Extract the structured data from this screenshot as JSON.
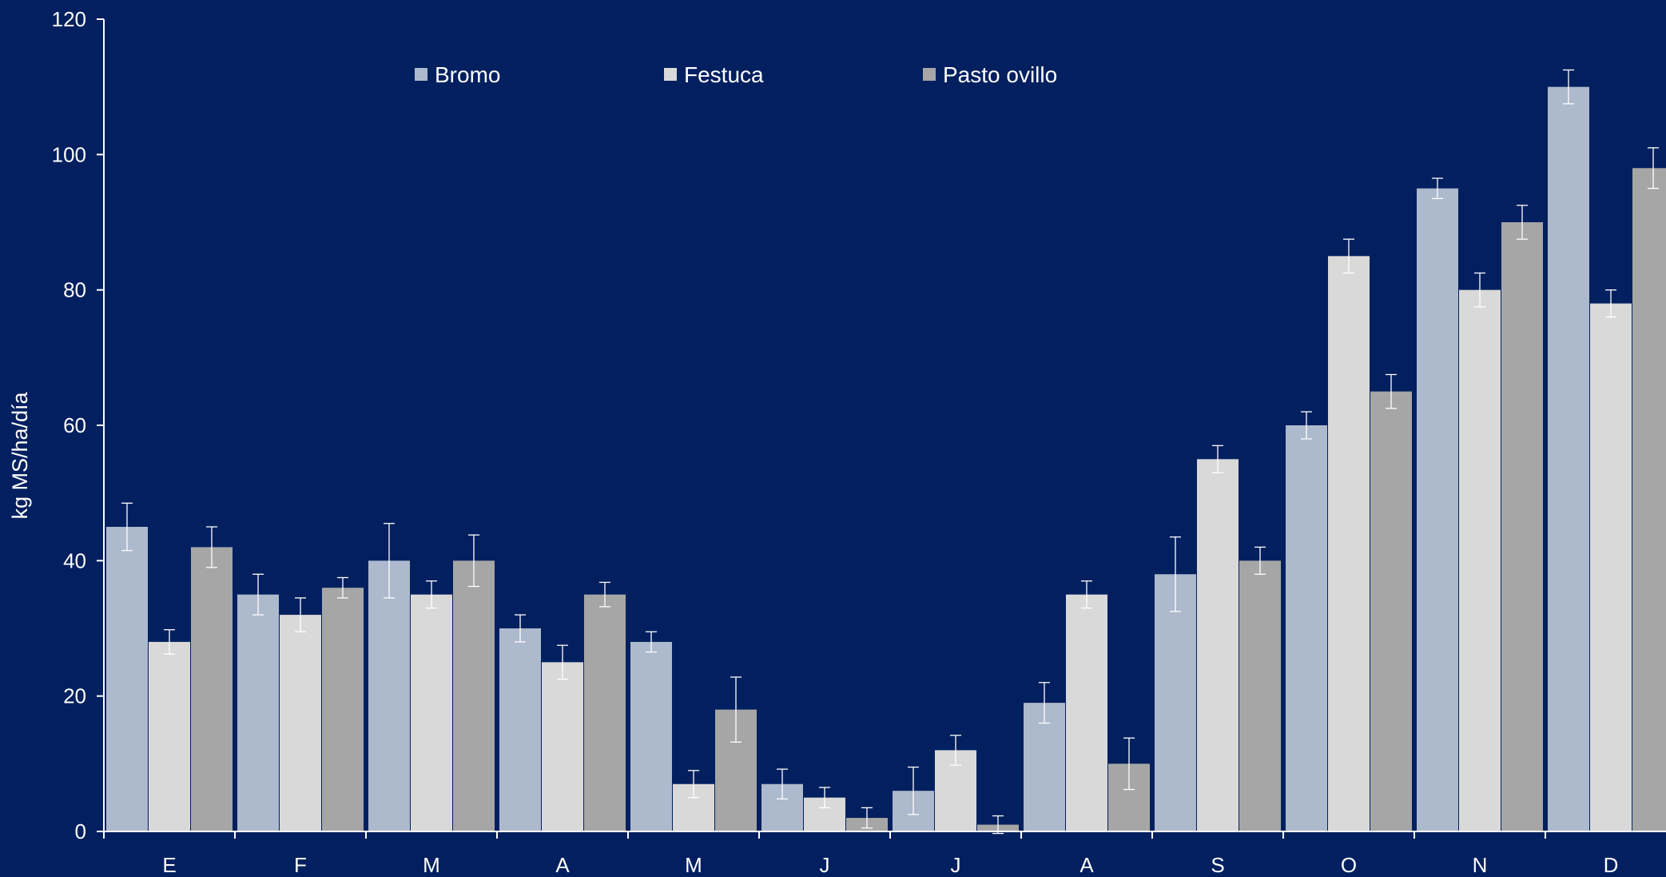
{
  "chart_data": {
    "type": "bar",
    "title": "",
    "xlabel": "",
    "ylabel": "kg MS/ha/día",
    "ylim": [
      0,
      120
    ],
    "yticks": [
      0,
      20,
      40,
      60,
      80,
      100,
      120
    ],
    "grid": false,
    "legend_position": "top",
    "categories": [
      "E",
      "F",
      "M",
      "A",
      "M",
      "J",
      "J",
      "A",
      "S",
      "O",
      "N",
      "D"
    ],
    "series": [
      {
        "name": "Bromo",
        "color": "#adb9cd",
        "values": [
          45,
          35,
          40,
          30,
          28,
          7,
          6,
          19,
          38,
          60,
          95,
          110
        ],
        "errors": [
          3.5,
          3,
          5.5,
          2,
          1.5,
          2.2,
          3.5,
          3,
          5.5,
          2,
          1.5,
          2.5
        ]
      },
      {
        "name": "Festuca",
        "color": "#d9d9d9",
        "values": [
          28,
          32,
          35,
          25,
          7,
          5,
          12,
          35,
          55,
          85,
          80,
          78
        ],
        "errors": [
          1.8,
          2.5,
          2,
          2.5,
          2,
          1.5,
          2.2,
          2,
          2,
          2.5,
          2.5,
          2
        ]
      },
      {
        "name": "Pasto ovillo",
        "color": "#a6a6a6",
        "values": [
          42,
          36,
          40,
          35,
          18,
          2,
          1,
          10,
          40,
          65,
          90,
          98
        ],
        "errors": [
          3,
          1.5,
          3.8,
          1.8,
          4.8,
          1.5,
          1.3,
          3.8,
          2,
          2.5,
          2.5,
          3
        ]
      }
    ]
  }
}
